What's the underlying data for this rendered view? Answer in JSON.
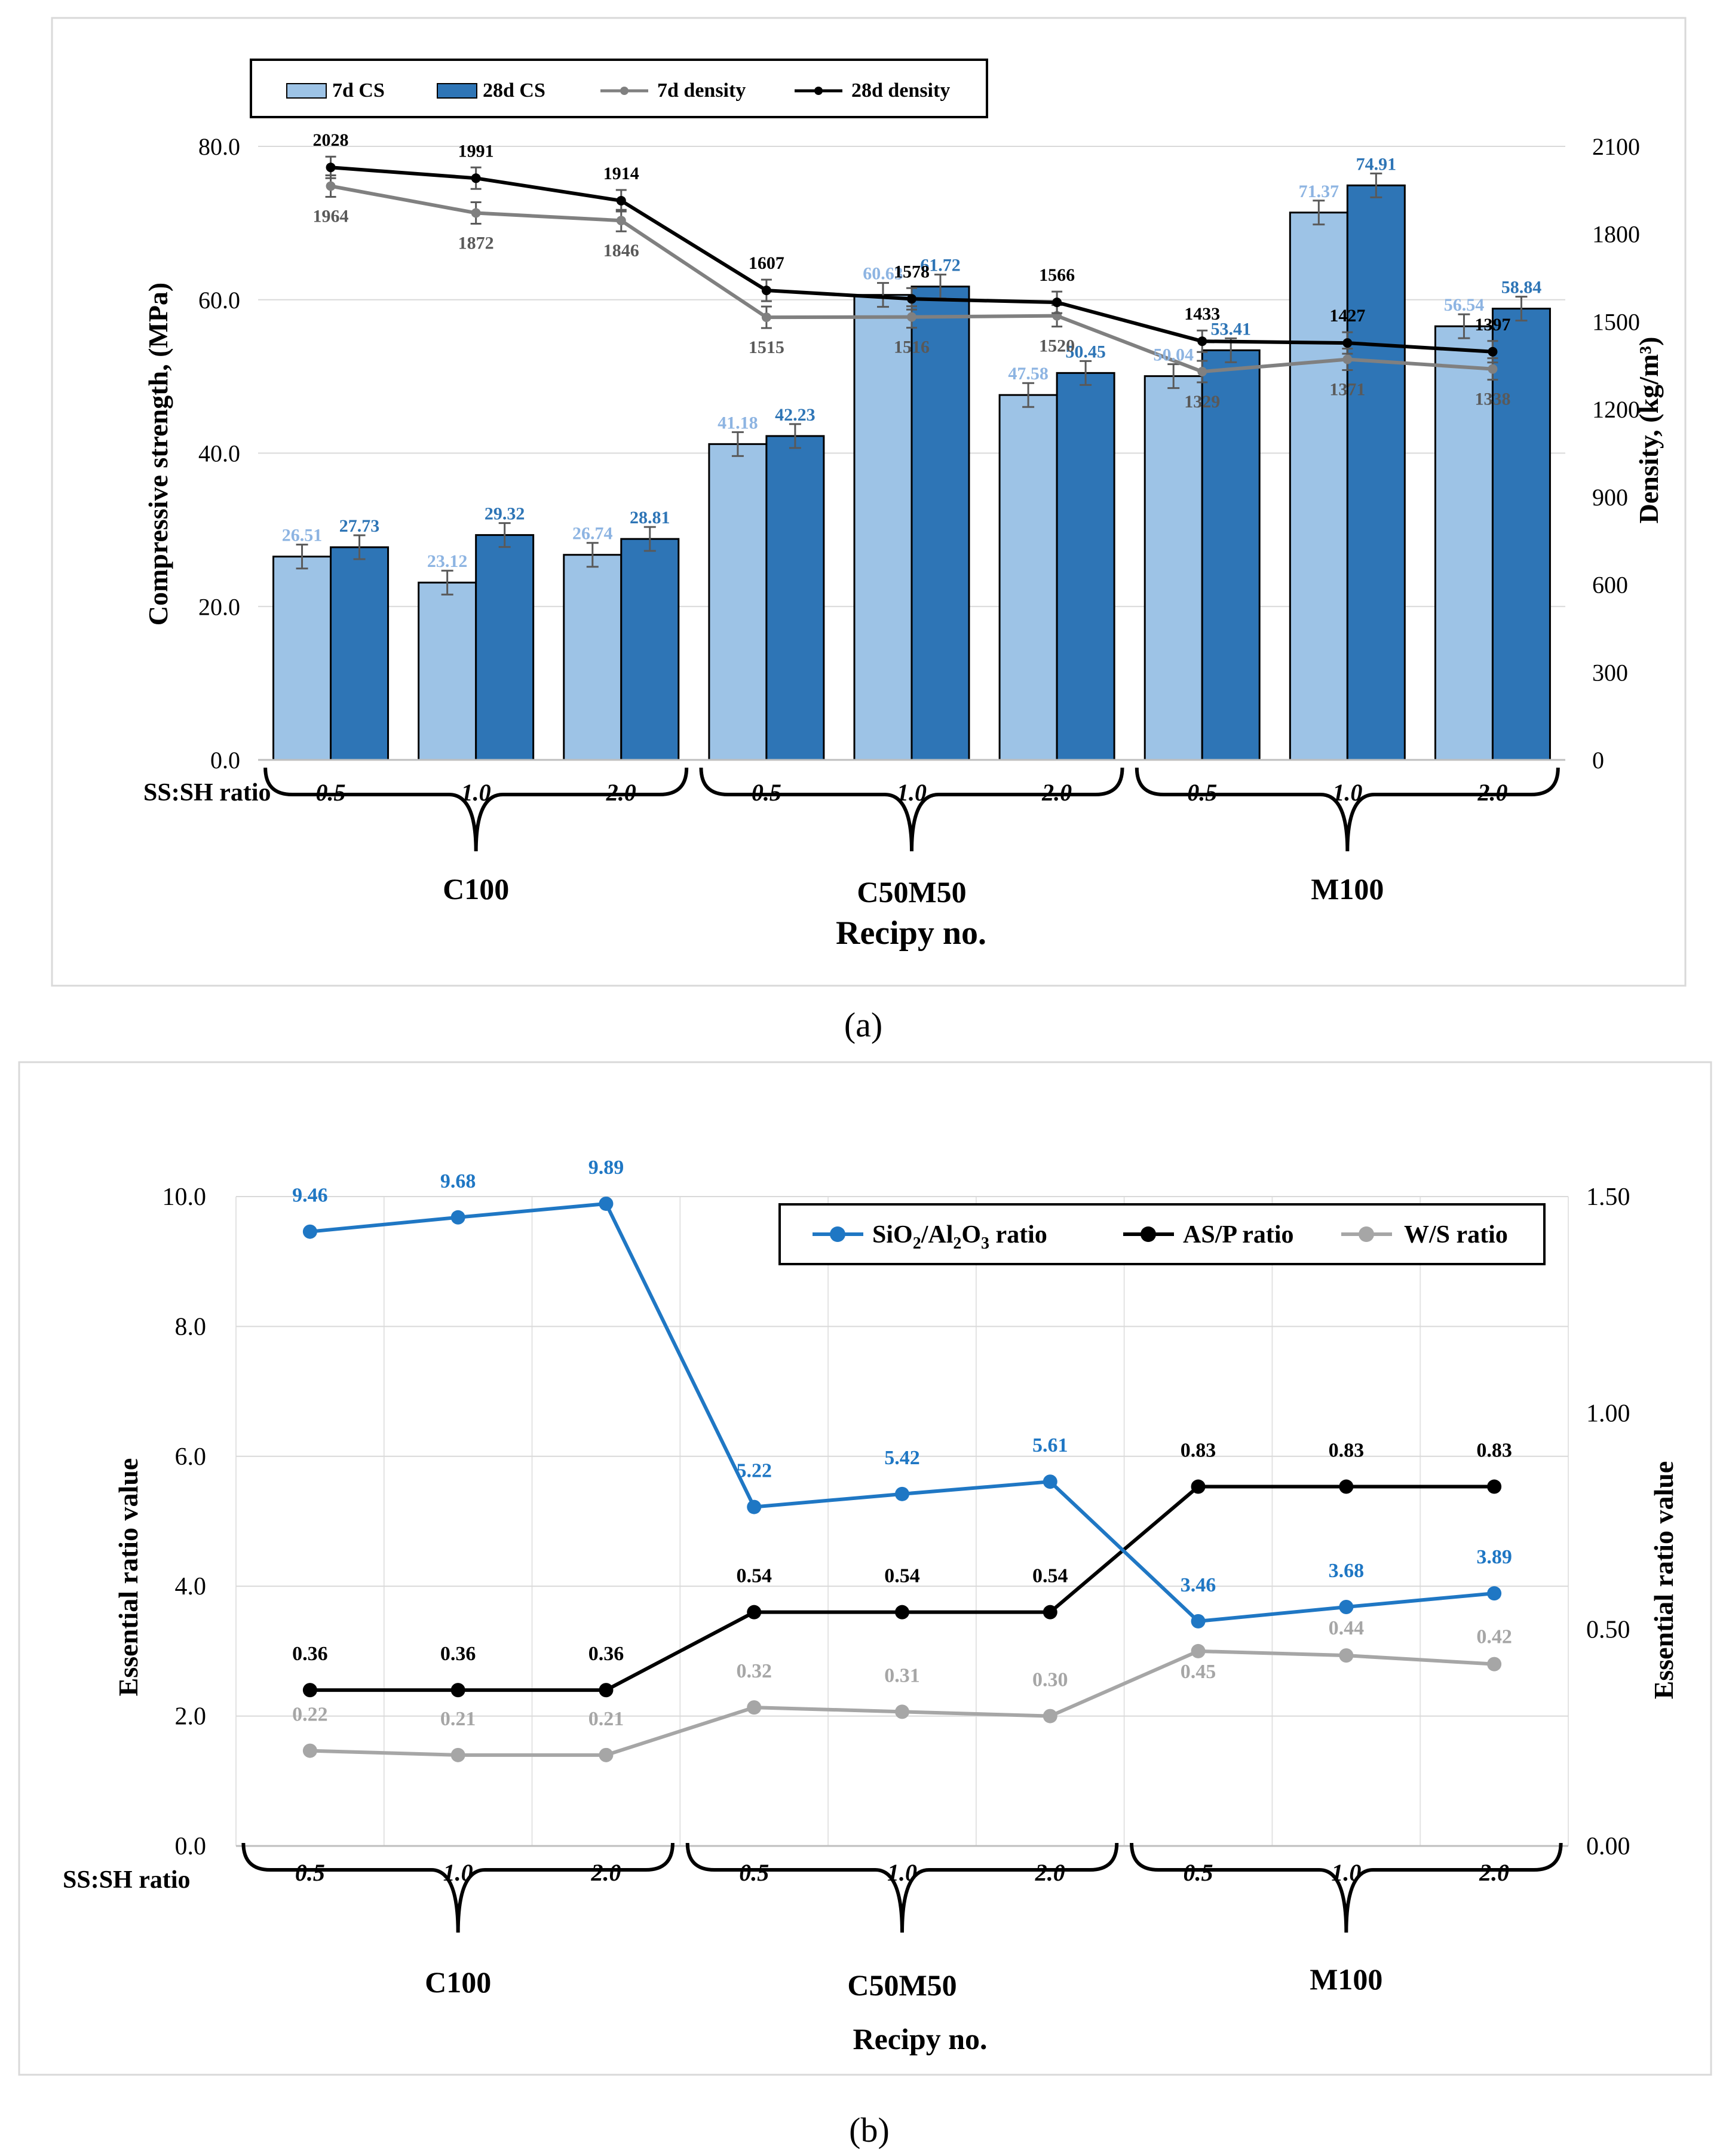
{
  "panel_a": {
    "caption": "(a)",
    "ss_sh_label": "SS:SH ratio",
    "xlabel": "Recipy no.",
    "ylabel_left": "Compressive strength, (MPa)",
    "ylabel_right": "Density, (kg/m³)",
    "legend": [
      "7d CS",
      "28d CS",
      "7d density",
      "28d density"
    ],
    "groups": [
      "C100",
      "C50M50",
      "M100"
    ],
    "ratios": [
      "0.5",
      "1.0",
      "2.0",
      "0.5",
      "1.0",
      "2.0",
      "0.5",
      "1.0",
      "2.0"
    ],
    "left_ticks": [
      "0.0",
      "20.0",
      "40.0",
      "60.0",
      "80.0"
    ],
    "right_ticks": [
      "0",
      "300",
      "600",
      "900",
      "1200",
      "1500",
      "1800",
      "2100"
    ]
  },
  "panel_b": {
    "caption": "(b)",
    "ss_sh_label": "SS:SH ratio",
    "xlabel": "Recipy no.",
    "ylabel_left": "Essential ratio value",
    "ylabel_right": "Essential ratio value",
    "legend": [
      "SiO2/Al2O3 ratio",
      "AS/P ratio",
      "W/S ratio"
    ],
    "groups": [
      "C100",
      "C50M50",
      "M100"
    ],
    "ratios": [
      "0.5",
      "1.0",
      "2.0",
      "0.5",
      "1.0",
      "2.0",
      "0.5",
      "1.0",
      "2.0"
    ],
    "left_ticks": [
      "0.0",
      "2.0",
      "4.0",
      "6.0",
      "8.0",
      "10.0"
    ],
    "right_ticks": [
      "0.00",
      "0.50",
      "1.00",
      "1.50"
    ]
  },
  "colors": {
    "cs7": "#9dc3e6",
    "cs28": "#2e75b6",
    "dens7": "#808080",
    "dens28": "#000000",
    "sio2": "#1f77c4",
    "asp": "#000000",
    "ws": "#a6a6a6",
    "label7": "#8db4e2",
    "label28": "#2e75b6"
  },
  "chart_data": [
    {
      "type": "bar",
      "categories": [
        "C100 0.5",
        "C100 1.0",
        "C100 2.0",
        "C50M50 0.5",
        "C50M50 1.0",
        "C50M50 2.0",
        "M100 0.5",
        "M100 1.0",
        "M100 2.0"
      ],
      "xlabel": "Recipy no.",
      "ylabel": "Compressive strength, (MPa)",
      "ylim": [
        0,
        80
      ],
      "y2label": "Density, (kg/m³)",
      "y2lim": [
        0,
        2100
      ],
      "series": [
        {
          "name": "7d CS",
          "axis": "left",
          "type": "bar",
          "values": [
            26.51,
            23.12,
            26.74,
            41.18,
            60.63,
            47.58,
            50.04,
            71.37,
            56.54
          ]
        },
        {
          "name": "28d CS",
          "axis": "left",
          "type": "bar",
          "values": [
            27.73,
            29.32,
            28.81,
            42.23,
            61.72,
            50.45,
            53.41,
            74.91,
            58.84
          ]
        },
        {
          "name": "7d density",
          "axis": "right",
          "type": "line",
          "values": [
            1964,
            1872,
            1846,
            1515,
            1516,
            1520,
            1329,
            1371,
            1338
          ]
        },
        {
          "name": "28d density",
          "axis": "right",
          "type": "line",
          "values": [
            2028,
            1991,
            1914,
            1607,
            1578,
            1566,
            1433,
            1427,
            1397
          ]
        }
      ],
      "legend": "top-left",
      "grid": true
    },
    {
      "type": "line",
      "categories": [
        "C100 0.5",
        "C100 1.0",
        "C100 2.0",
        "C50M50 0.5",
        "C50M50 1.0",
        "C50M50 2.0",
        "M100 0.5",
        "M100 1.0",
        "M100 2.0"
      ],
      "xlabel": "Recipy no.",
      "ylabel": "Essential ratio value",
      "ylim": [
        0,
        10
      ],
      "y2label": "Essential ratio value",
      "y2lim": [
        0,
        1.5
      ],
      "series": [
        {
          "name": "SiO2/Al2O3 ratio",
          "axis": "left",
          "values": [
            9.46,
            9.68,
            9.89,
            5.22,
            5.42,
            5.61,
            3.46,
            3.68,
            3.89
          ]
        },
        {
          "name": "AS/P ratio",
          "axis": "right",
          "values": [
            0.36,
            0.36,
            0.36,
            0.54,
            0.54,
            0.54,
            0.83,
            0.83,
            0.83
          ]
        },
        {
          "name": "W/S ratio",
          "axis": "right",
          "values": [
            0.22,
            0.21,
            0.21,
            0.32,
            0.31,
            0.3,
            0.45,
            0.44,
            0.42
          ]
        }
      ],
      "legend": "top-right",
      "grid": true
    }
  ]
}
